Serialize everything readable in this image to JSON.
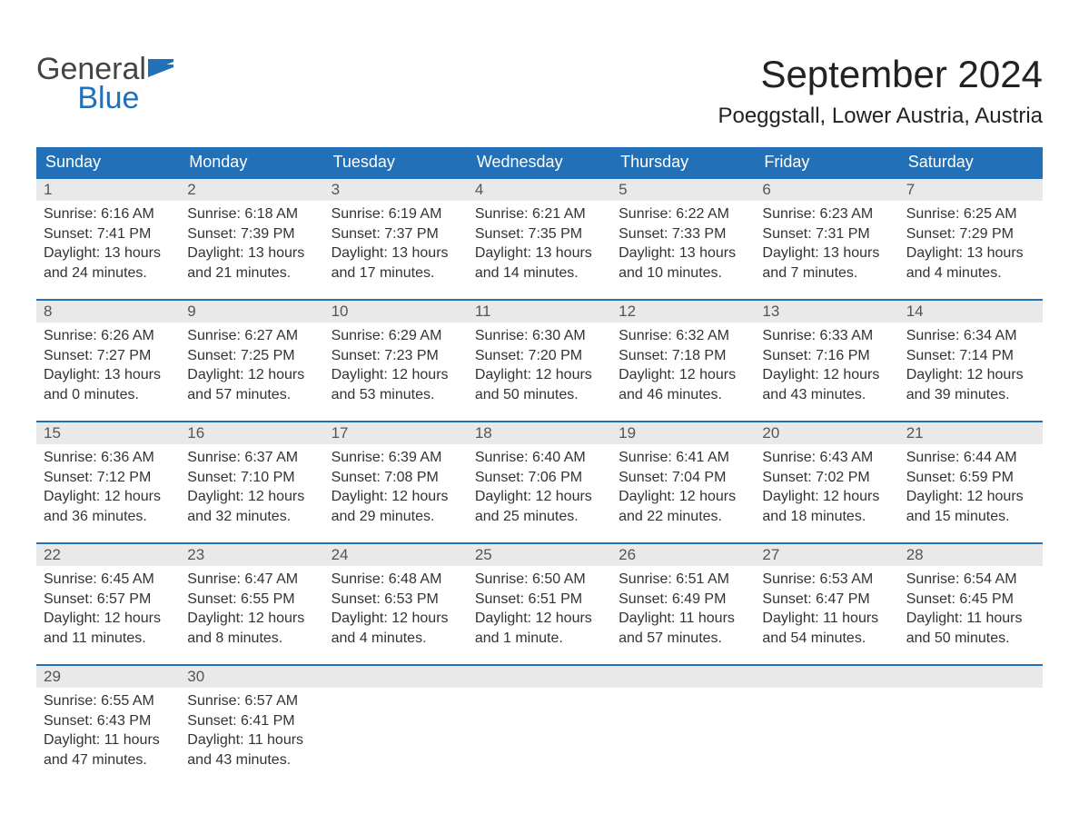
{
  "brand": {
    "word1": "General",
    "word2": "Blue"
  },
  "title": "September 2024",
  "location": "Poeggstall, Lower Austria, Austria",
  "colors": {
    "header_bg": "#2270b8",
    "header_text": "#ffffff",
    "daynum_bg": "#e9e9e9",
    "border_top": "#2270b8",
    "body_text": "#333333",
    "background": "#ffffff"
  },
  "weekdays": [
    "Sunday",
    "Monday",
    "Tuesday",
    "Wednesday",
    "Thursday",
    "Friday",
    "Saturday"
  ],
  "layout": {
    "columns": 7,
    "rows": 5,
    "first_day_column": 0,
    "days_in_month": 30
  },
  "days": [
    {
      "n": "1",
      "sunrise": "Sunrise: 6:16 AM",
      "sunset": "Sunset: 7:41 PM",
      "d1": "Daylight: 13 hours",
      "d2": "and 24 minutes."
    },
    {
      "n": "2",
      "sunrise": "Sunrise: 6:18 AM",
      "sunset": "Sunset: 7:39 PM",
      "d1": "Daylight: 13 hours",
      "d2": "and 21 minutes."
    },
    {
      "n": "3",
      "sunrise": "Sunrise: 6:19 AM",
      "sunset": "Sunset: 7:37 PM",
      "d1": "Daylight: 13 hours",
      "d2": "and 17 minutes."
    },
    {
      "n": "4",
      "sunrise": "Sunrise: 6:21 AM",
      "sunset": "Sunset: 7:35 PM",
      "d1": "Daylight: 13 hours",
      "d2": "and 14 minutes."
    },
    {
      "n": "5",
      "sunrise": "Sunrise: 6:22 AM",
      "sunset": "Sunset: 7:33 PM",
      "d1": "Daylight: 13 hours",
      "d2": "and 10 minutes."
    },
    {
      "n": "6",
      "sunrise": "Sunrise: 6:23 AM",
      "sunset": "Sunset: 7:31 PM",
      "d1": "Daylight: 13 hours",
      "d2": "and 7 minutes."
    },
    {
      "n": "7",
      "sunrise": "Sunrise: 6:25 AM",
      "sunset": "Sunset: 7:29 PM",
      "d1": "Daylight: 13 hours",
      "d2": "and 4 minutes."
    },
    {
      "n": "8",
      "sunrise": "Sunrise: 6:26 AM",
      "sunset": "Sunset: 7:27 PM",
      "d1": "Daylight: 13 hours",
      "d2": "and 0 minutes."
    },
    {
      "n": "9",
      "sunrise": "Sunrise: 6:27 AM",
      "sunset": "Sunset: 7:25 PM",
      "d1": "Daylight: 12 hours",
      "d2": "and 57 minutes."
    },
    {
      "n": "10",
      "sunrise": "Sunrise: 6:29 AM",
      "sunset": "Sunset: 7:23 PM",
      "d1": "Daylight: 12 hours",
      "d2": "and 53 minutes."
    },
    {
      "n": "11",
      "sunrise": "Sunrise: 6:30 AM",
      "sunset": "Sunset: 7:20 PM",
      "d1": "Daylight: 12 hours",
      "d2": "and 50 minutes."
    },
    {
      "n": "12",
      "sunrise": "Sunrise: 6:32 AM",
      "sunset": "Sunset: 7:18 PM",
      "d1": "Daylight: 12 hours",
      "d2": "and 46 minutes."
    },
    {
      "n": "13",
      "sunrise": "Sunrise: 6:33 AM",
      "sunset": "Sunset: 7:16 PM",
      "d1": "Daylight: 12 hours",
      "d2": "and 43 minutes."
    },
    {
      "n": "14",
      "sunrise": "Sunrise: 6:34 AM",
      "sunset": "Sunset: 7:14 PM",
      "d1": "Daylight: 12 hours",
      "d2": "and 39 minutes."
    },
    {
      "n": "15",
      "sunrise": "Sunrise: 6:36 AM",
      "sunset": "Sunset: 7:12 PM",
      "d1": "Daylight: 12 hours",
      "d2": "and 36 minutes."
    },
    {
      "n": "16",
      "sunrise": "Sunrise: 6:37 AM",
      "sunset": "Sunset: 7:10 PM",
      "d1": "Daylight: 12 hours",
      "d2": "and 32 minutes."
    },
    {
      "n": "17",
      "sunrise": "Sunrise: 6:39 AM",
      "sunset": "Sunset: 7:08 PM",
      "d1": "Daylight: 12 hours",
      "d2": "and 29 minutes."
    },
    {
      "n": "18",
      "sunrise": "Sunrise: 6:40 AM",
      "sunset": "Sunset: 7:06 PM",
      "d1": "Daylight: 12 hours",
      "d2": "and 25 minutes."
    },
    {
      "n": "19",
      "sunrise": "Sunrise: 6:41 AM",
      "sunset": "Sunset: 7:04 PM",
      "d1": "Daylight: 12 hours",
      "d2": "and 22 minutes."
    },
    {
      "n": "20",
      "sunrise": "Sunrise: 6:43 AM",
      "sunset": "Sunset: 7:02 PM",
      "d1": "Daylight: 12 hours",
      "d2": "and 18 minutes."
    },
    {
      "n": "21",
      "sunrise": "Sunrise: 6:44 AM",
      "sunset": "Sunset: 6:59 PM",
      "d1": "Daylight: 12 hours",
      "d2": "and 15 minutes."
    },
    {
      "n": "22",
      "sunrise": "Sunrise: 6:45 AM",
      "sunset": "Sunset: 6:57 PM",
      "d1": "Daylight: 12 hours",
      "d2": "and 11 minutes."
    },
    {
      "n": "23",
      "sunrise": "Sunrise: 6:47 AM",
      "sunset": "Sunset: 6:55 PM",
      "d1": "Daylight: 12 hours",
      "d2": "and 8 minutes."
    },
    {
      "n": "24",
      "sunrise": "Sunrise: 6:48 AM",
      "sunset": "Sunset: 6:53 PM",
      "d1": "Daylight: 12 hours",
      "d2": "and 4 minutes."
    },
    {
      "n": "25",
      "sunrise": "Sunrise: 6:50 AM",
      "sunset": "Sunset: 6:51 PM",
      "d1": "Daylight: 12 hours",
      "d2": "and 1 minute."
    },
    {
      "n": "26",
      "sunrise": "Sunrise: 6:51 AM",
      "sunset": "Sunset: 6:49 PM",
      "d1": "Daylight: 11 hours",
      "d2": "and 57 minutes."
    },
    {
      "n": "27",
      "sunrise": "Sunrise: 6:53 AM",
      "sunset": "Sunset: 6:47 PM",
      "d1": "Daylight: 11 hours",
      "d2": "and 54 minutes."
    },
    {
      "n": "28",
      "sunrise": "Sunrise: 6:54 AM",
      "sunset": "Sunset: 6:45 PM",
      "d1": "Daylight: 11 hours",
      "d2": "and 50 minutes."
    },
    {
      "n": "29",
      "sunrise": "Sunrise: 6:55 AM",
      "sunset": "Sunset: 6:43 PM",
      "d1": "Daylight: 11 hours",
      "d2": "and 47 minutes."
    },
    {
      "n": "30",
      "sunrise": "Sunrise: 6:57 AM",
      "sunset": "Sunset: 6:41 PM",
      "d1": "Daylight: 11 hours",
      "d2": "and 43 minutes."
    }
  ]
}
